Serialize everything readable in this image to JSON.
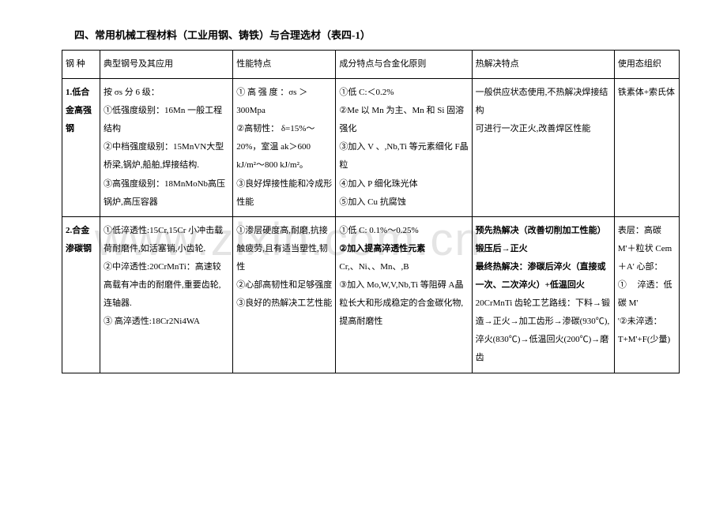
{
  "title": "四、常用机械工程材料（工业用钢、铸铁）与合理选材（表四-1）",
  "watermark": "www.zixin.com.cn",
  "headers": {
    "c0": "钢 种",
    "c1": "典型钢号及其应用",
    "c2": "性能特点",
    "c3": "成分特点与合金化原则",
    "c4": "热解决特点",
    "c5": "使用态组织"
  },
  "row1": {
    "type_a": "1.低合",
    "type_b": "金高强",
    "type_c": "钢",
    "ex_a": "按 σs 分 6 级：",
    "ex_b": "①低强度级别：16Mn 一般工程结构",
    "ex_c": "②中档强度级别：15MnVN大型桥梁,锅炉,船舶,焊接结构.",
    "ex_d": "③高强度级别：18MnMoNb高压锅炉,高压容器",
    "perf_a": "① 高 强 度 ：σs ＞300Mpa",
    "perf_b": "②高韧性： δ=15%～20%，室温 ak＞600 kJ/m²～800 kJ/m²。",
    "perf_c": "③良好焊接性能和冷成形性能",
    "comp_a": "①低 C:＜0.2%",
    "comp_b": "②Me 以 Mn 为主、Mn 和 Si 固溶强化",
    "comp_c": "③加入 V 、,Nb,Ti 等元素细化 F晶粒",
    "comp_d": "④加入 P 细化珠光体",
    "comp_e": "⑤加入 Cu 抗腐蚀",
    "heat_a": "一般供应状态使用,不热解决焊接结构",
    "heat_b": "可进行一次正火,改善焊区性能",
    "micro": "铁素体+索氏体"
  },
  "row2": {
    "type_a": "2.合金",
    "type_b": "渗碳钢",
    "ex_a": "①低淬透性:15Cr,15Cr 小冲击载荷耐磨件,如活塞销,小齿轮.",
    "ex_b": "②中淬透性:20CrMnTi：高速较高载有冲击的耐磨件,重要齿轮,连轴器.",
    "ex_c": "③ 高淬透性:18Cr2Ni4WA",
    "perf_a": "①渗层硬度高,耐磨,抗接触疲劳,且有适当塑性,韧性",
    "perf_b": "②心部高韧性和足够强度",
    "perf_c": "③良好的热解决工艺性能",
    "comp_a": "①低 C: 0.1%～0.25%",
    "comp_b": "②加入提高淬透性元素",
    "comp_c": "Cr,、Ni、、Mn、,B",
    "comp_d": "③加入 Mo,W,V,Nb,Ti 等阻碍 A晶粒长大和形成稳定的合金碳化物,提高耐磨性",
    "heat_a": "预先热解决（改善切削加工性能） 锻压后→正火",
    "heat_b": "最终热解决：渗碳后淬火（直接或一次、二次淬火）+低温回火",
    "heat_c": "20CrMnTi 齿轮工艺路线：下料→锻造→正火→加工齿形→渗碳(930℃),淬火(830℃)→低温回火(200℃)→磨齿",
    "micro_a": "表层：高碳 M'＋粒状 Cem＋A' 心部：",
    "micro_b": "① 　淬透：低碳 M'",
    "micro_c": "'②未淬透：T+M'+F(少量)"
  }
}
